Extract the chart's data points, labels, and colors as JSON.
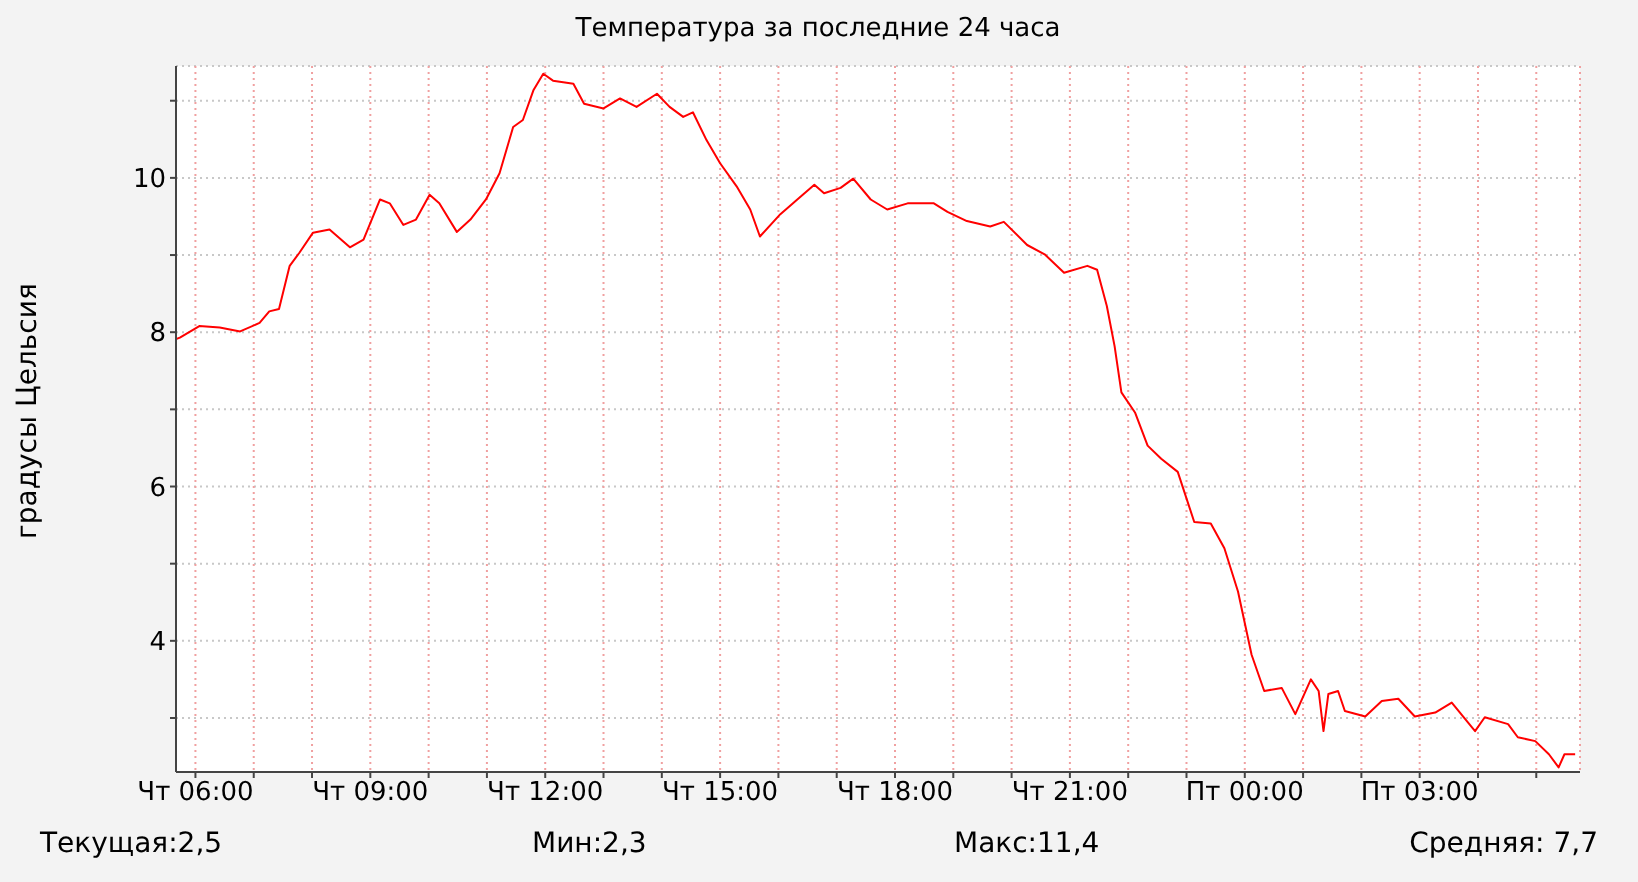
{
  "chart_data": {
    "type": "line",
    "title": "Температура за последние 24 часа",
    "ylabel": "градусы Цельсия",
    "color": "#ff0000",
    "grid": true,
    "x": [
      "--01-02T05:40",
      "--01-02T05:44",
      "--01-02T06:04",
      "--01-02T06:25",
      "--01-02T06:46",
      "--01-02T07:06",
      "--01-02T07:16",
      "--01-02T07:26",
      "--01-02T07:37",
      "--01-02T07:47",
      "--01-02T08:01",
      "--01-02T08:18",
      "--01-02T08:39",
      "--01-02T08:53",
      "--01-02T09:10",
      "--01-02T09:20",
      "--01-02T09:34",
      "--01-02T09:47",
      "--01-02T10:01",
      "--01-02T10:11",
      "--01-02T10:29",
      "--01-02T10:43",
      "--01-02T10:59",
      "--01-02T11:13",
      "--01-02T11:27",
      "--01-02T11:37",
      "--01-02T11:48",
      "--01-02T11:58",
      "--01-02T12:08",
      "--01-02T12:29",
      "--01-02T12:40",
      "--01-02T13:00",
      "--01-02T13:17",
      "--01-02T13:34",
      "--01-02T13:55",
      "--01-02T14:08",
      "--01-02T14:22",
      "--01-02T14:32",
      "--01-02T14:46",
      "--01-02T15:00",
      "--01-02T15:17",
      "--01-02T15:31",
      "--01-02T15:41",
      "--01-02T16:02",
      "--01-02T16:23",
      "--01-02T16:37",
      "--01-02T16:47",
      "--01-02T17:04",
      "--01-02T17:17",
      "--01-02T17:35",
      "--01-02T17:52",
      "--01-02T18:13",
      "--01-02T18:40",
      "--01-02T18:54",
      "--01-02T19:14",
      "--01-02T19:38",
      "--01-02T19:52",
      "--01-02T20:16",
      "--01-02T20:34",
      "--01-02T20:54",
      "--01-02T21:18",
      "--01-02T21:28",
      "--01-02T21:38",
      "--01-02T21:46",
      "--01-02T21:53",
      "--01-02T22:07",
      "--01-02T22:20",
      "--01-02T22:34",
      "--01-02T22:51",
      "--01-02T23:08",
      "--01-02T23:25",
      "--01-02T23:39",
      "--01-02T23:53",
      "--01-03T00:07",
      "--01-03T00:20",
      "--01-03T00:38",
      "--01-03T00:52",
      "--01-03T01:08",
      "--01-03T01:16",
      "--01-03T01:21",
      "--01-03T01:26",
      "--01-03T01:36",
      "--01-03T01:43",
      "--01-03T02:04",
      "--01-03T02:21",
      "--01-03T02:38",
      "--01-03T02:55",
      "--01-03T03:16",
      "--01-03T03:33",
      "--01-03T03:57",
      "--01-03T04:07",
      "--01-03T04:31",
      "--01-03T04:41",
      "--01-03T04:59",
      "--01-03T05:13",
      "--01-03T05:23",
      "--01-03T05:29",
      "--01-03T05:40"
    ],
    "values": [
      7.91,
      7.93,
      8.08,
      8.06,
      8.01,
      8.12,
      8.27,
      8.3,
      8.86,
      9.03,
      9.29,
      9.33,
      9.1,
      9.2,
      9.72,
      9.67,
      9.39,
      9.46,
      9.78,
      9.67,
      9.3,
      9.46,
      9.72,
      10.06,
      10.66,
      10.75,
      11.14,
      11.35,
      11.26,
      11.22,
      10.96,
      10.9,
      11.03,
      10.92,
      11.09,
      10.92,
      10.79,
      10.85,
      10.49,
      10.19,
      9.89,
      9.59,
      9.24,
      9.53,
      9.76,
      9.91,
      9.8,
      9.87,
      9.99,
      9.72,
      9.59,
      9.67,
      9.67,
      9.56,
      9.44,
      9.37,
      9.43,
      9.13,
      9.01,
      8.77,
      8.86,
      8.81,
      8.34,
      7.82,
      7.22,
      6.96,
      6.53,
      6.36,
      6.19,
      5.54,
      5.52,
      5.2,
      4.64,
      3.82,
      3.35,
      3.39,
      3.05,
      3.5,
      3.35,
      2.83,
      3.31,
      3.35,
      3.09,
      3.02,
      3.22,
      3.25,
      3.02,
      3.07,
      3.2,
      2.83,
      3.01,
      2.92,
      2.75,
      2.7,
      2.53,
      2.36,
      2.53,
      2.53
    ],
    "xlim": [
      "--01-02T05:40",
      "--01-03T05:45"
    ],
    "ylim": [
      2.3,
      11.45
    ],
    "xticks": [
      {
        "value": "--01-02T06:00",
        "label": "Чт 06:00"
      },
      {
        "value": "--01-02T07:00",
        "label": null
      },
      {
        "value": "--01-02T08:00",
        "label": null
      },
      {
        "value": "--01-02T09:00",
        "label": "Чт 09:00"
      },
      {
        "value": "--01-02T10:00",
        "label": null
      },
      {
        "value": "--01-02T11:00",
        "label": null
      },
      {
        "value": "--01-02T12:00",
        "label": "Чт 12:00"
      },
      {
        "value": "--01-02T13:00",
        "label": null
      },
      {
        "value": "--01-02T14:00",
        "label": null
      },
      {
        "value": "--01-02T15:00",
        "label": "Чт 15:00"
      },
      {
        "value": "--01-02T16:00",
        "label": null
      },
      {
        "value": "--01-02T17:00",
        "label": null
      },
      {
        "value": "--01-02T18:00",
        "label": "Чт 18:00"
      },
      {
        "value": "--01-02T19:00",
        "label": null
      },
      {
        "value": "--01-02T20:00",
        "label": null
      },
      {
        "value": "--01-02T21:00",
        "label": "Чт 21:00"
      },
      {
        "value": "--01-02T22:00",
        "label": null
      },
      {
        "value": "--01-02T23:00",
        "label": null
      },
      {
        "value": "--01-03T00:00",
        "label": "Пт 00:00"
      },
      {
        "value": "--01-03T01:00",
        "label": null
      },
      {
        "value": "--01-03T02:00",
        "label": null
      },
      {
        "value": "--01-03T03:00",
        "label": "Пт 03:00"
      },
      {
        "value": "--01-03T04:00",
        "label": null
      },
      {
        "value": "--01-03T05:00",
        "label": null
      }
    ],
    "yticks": [
      {
        "value": 3,
        "label": null
      },
      4,
      {
        "value": 5,
        "label": null
      },
      6,
      {
        "value": 7,
        "label": null
      },
      8,
      {
        "value": 9,
        "label": null
      },
      10,
      {
        "value": 11,
        "label": null
      }
    ],
    "annotations": [
      "Текущая:2,5",
      "Мин:2,3",
      "Макс:11,4",
      "Средняя: 7,7"
    ]
  }
}
